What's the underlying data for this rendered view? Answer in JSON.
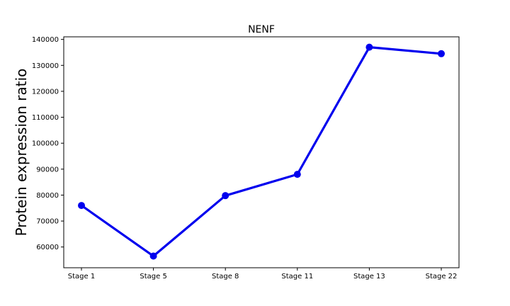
{
  "chart_data": {
    "type": "line",
    "title": "NENF",
    "xlabel": "",
    "ylabel": "Protein expression ratio",
    "categories": [
      "Stage 1",
      "Stage 5",
      "Stage 8",
      "Stage 11",
      "Stage 13",
      "Stage 22"
    ],
    "series": [
      {
        "values": [
          76000,
          56500,
          79800,
          88000,
          137000,
          134500
        ]
      }
    ],
    "ylim": [
      52000,
      141000
    ],
    "yticks": [
      60000,
      70000,
      80000,
      90000,
      100000,
      110000,
      120000,
      130000,
      140000
    ],
    "grid": false,
    "legend": "none",
    "color": "#0000ee"
  }
}
